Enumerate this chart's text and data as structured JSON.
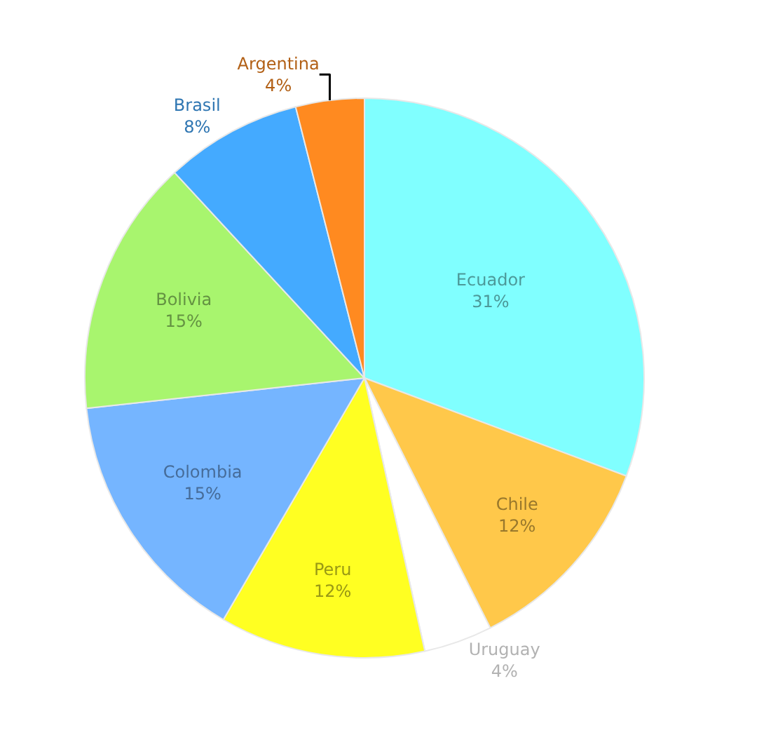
{
  "chart_data": {
    "type": "pie",
    "categories": [
      "Ecuador",
      "Chile",
      "Uruguay",
      "Peru",
      "Colombia",
      "Bolivia",
      "Brasil",
      "Argentina"
    ],
    "values": [
      31,
      12,
      4,
      12,
      15,
      15,
      8,
      4
    ],
    "value_labels": [
      "31%",
      "12%",
      "4%",
      "12%",
      "15%",
      "15%",
      "8%",
      "4%"
    ],
    "colors": [
      "#80ffff",
      "#ffc84a",
      "#ffffff",
      "#ffff22",
      "#75b5ff",
      "#a8f56e",
      "#44aaff",
      "#ff8a20"
    ],
    "legend": false
  }
}
